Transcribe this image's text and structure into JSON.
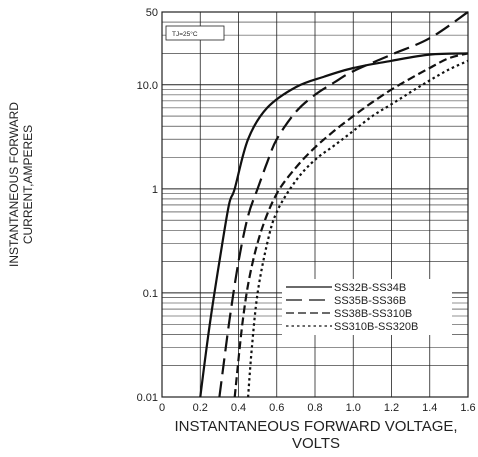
{
  "chart_data": {
    "type": "line",
    "ylabel_lines": [
      "INSTANTANEOUS FORWARD",
      "CURRENT,AMPERES"
    ],
    "xlabel_lines": [
      "INSTANTANEOUS FORWARD VOLTAGE,",
      "VOLTS"
    ],
    "annotation": "TJ=25°C",
    "x_scale": "linear",
    "y_scale": "log",
    "xlim": [
      0,
      1.6
    ],
    "ylim": [
      0.01,
      50
    ],
    "x_ticks": [
      0,
      0.2,
      0.4,
      0.6,
      0.8,
      1.0,
      1.2,
      1.4,
      1.6
    ],
    "x_tick_labels": [
      "0",
      "0.2",
      "0.4",
      "0.6",
      "0.8",
      "1.0",
      "1.2",
      "1.4",
      "1.6"
    ],
    "y_ticks": [
      0.01,
      0.1,
      1,
      10,
      50
    ],
    "y_tick_labels": [
      "0.01",
      "0.1",
      "1",
      "10.0",
      "50"
    ],
    "grid": true,
    "legend_position": "lower-right",
    "series": [
      {
        "name": "SS32B-SS34B",
        "dash": "solid",
        "x": [
          0.2,
          0.25,
          0.3,
          0.35,
          0.38,
          0.45,
          0.55,
          0.7,
          0.85,
          1.0,
          1.2,
          1.4,
          1.6
        ],
        "y": [
          0.01,
          0.05,
          0.2,
          0.7,
          1.0,
          3.0,
          6.0,
          9.5,
          12.0,
          14.5,
          17.0,
          19.5,
          20.0
        ]
      },
      {
        "name": "SS35B-SS36B",
        "dash": "long",
        "x": [
          0.3,
          0.35,
          0.4,
          0.45,
          0.5,
          0.55,
          0.6,
          0.7,
          0.8,
          0.9,
          1.0,
          1.2,
          1.4,
          1.6
        ],
        "y": [
          0.01,
          0.05,
          0.2,
          0.55,
          1.0,
          1.8,
          3.0,
          5.5,
          8.0,
          10.5,
          13.5,
          19.5,
          28.0,
          50.0
        ]
      },
      {
        "name": "SS38B-SS310B",
        "dash": "medium",
        "x": [
          0.38,
          0.42,
          0.46,
          0.52,
          0.6,
          0.7,
          0.8,
          0.9,
          1.0,
          1.1,
          1.2,
          1.3,
          1.4,
          1.5,
          1.6
        ],
        "y": [
          0.01,
          0.05,
          0.15,
          0.4,
          0.9,
          1.6,
          2.5,
          3.6,
          5.0,
          6.8,
          9.0,
          11.5,
          14.5,
          18.0,
          20.0
        ]
      },
      {
        "name": "SS310B-SS320B",
        "dash": "dotted",
        "x": [
          0.45,
          0.47,
          0.5,
          0.55,
          0.6,
          0.7,
          0.8,
          0.9,
          1.0,
          1.1,
          1.2,
          1.3,
          1.4,
          1.5,
          1.6
        ],
        "y": [
          0.01,
          0.03,
          0.1,
          0.3,
          0.6,
          1.2,
          1.9,
          2.6,
          3.6,
          5.0,
          6.5,
          8.5,
          11.0,
          14.0,
          17.0
        ]
      }
    ]
  }
}
